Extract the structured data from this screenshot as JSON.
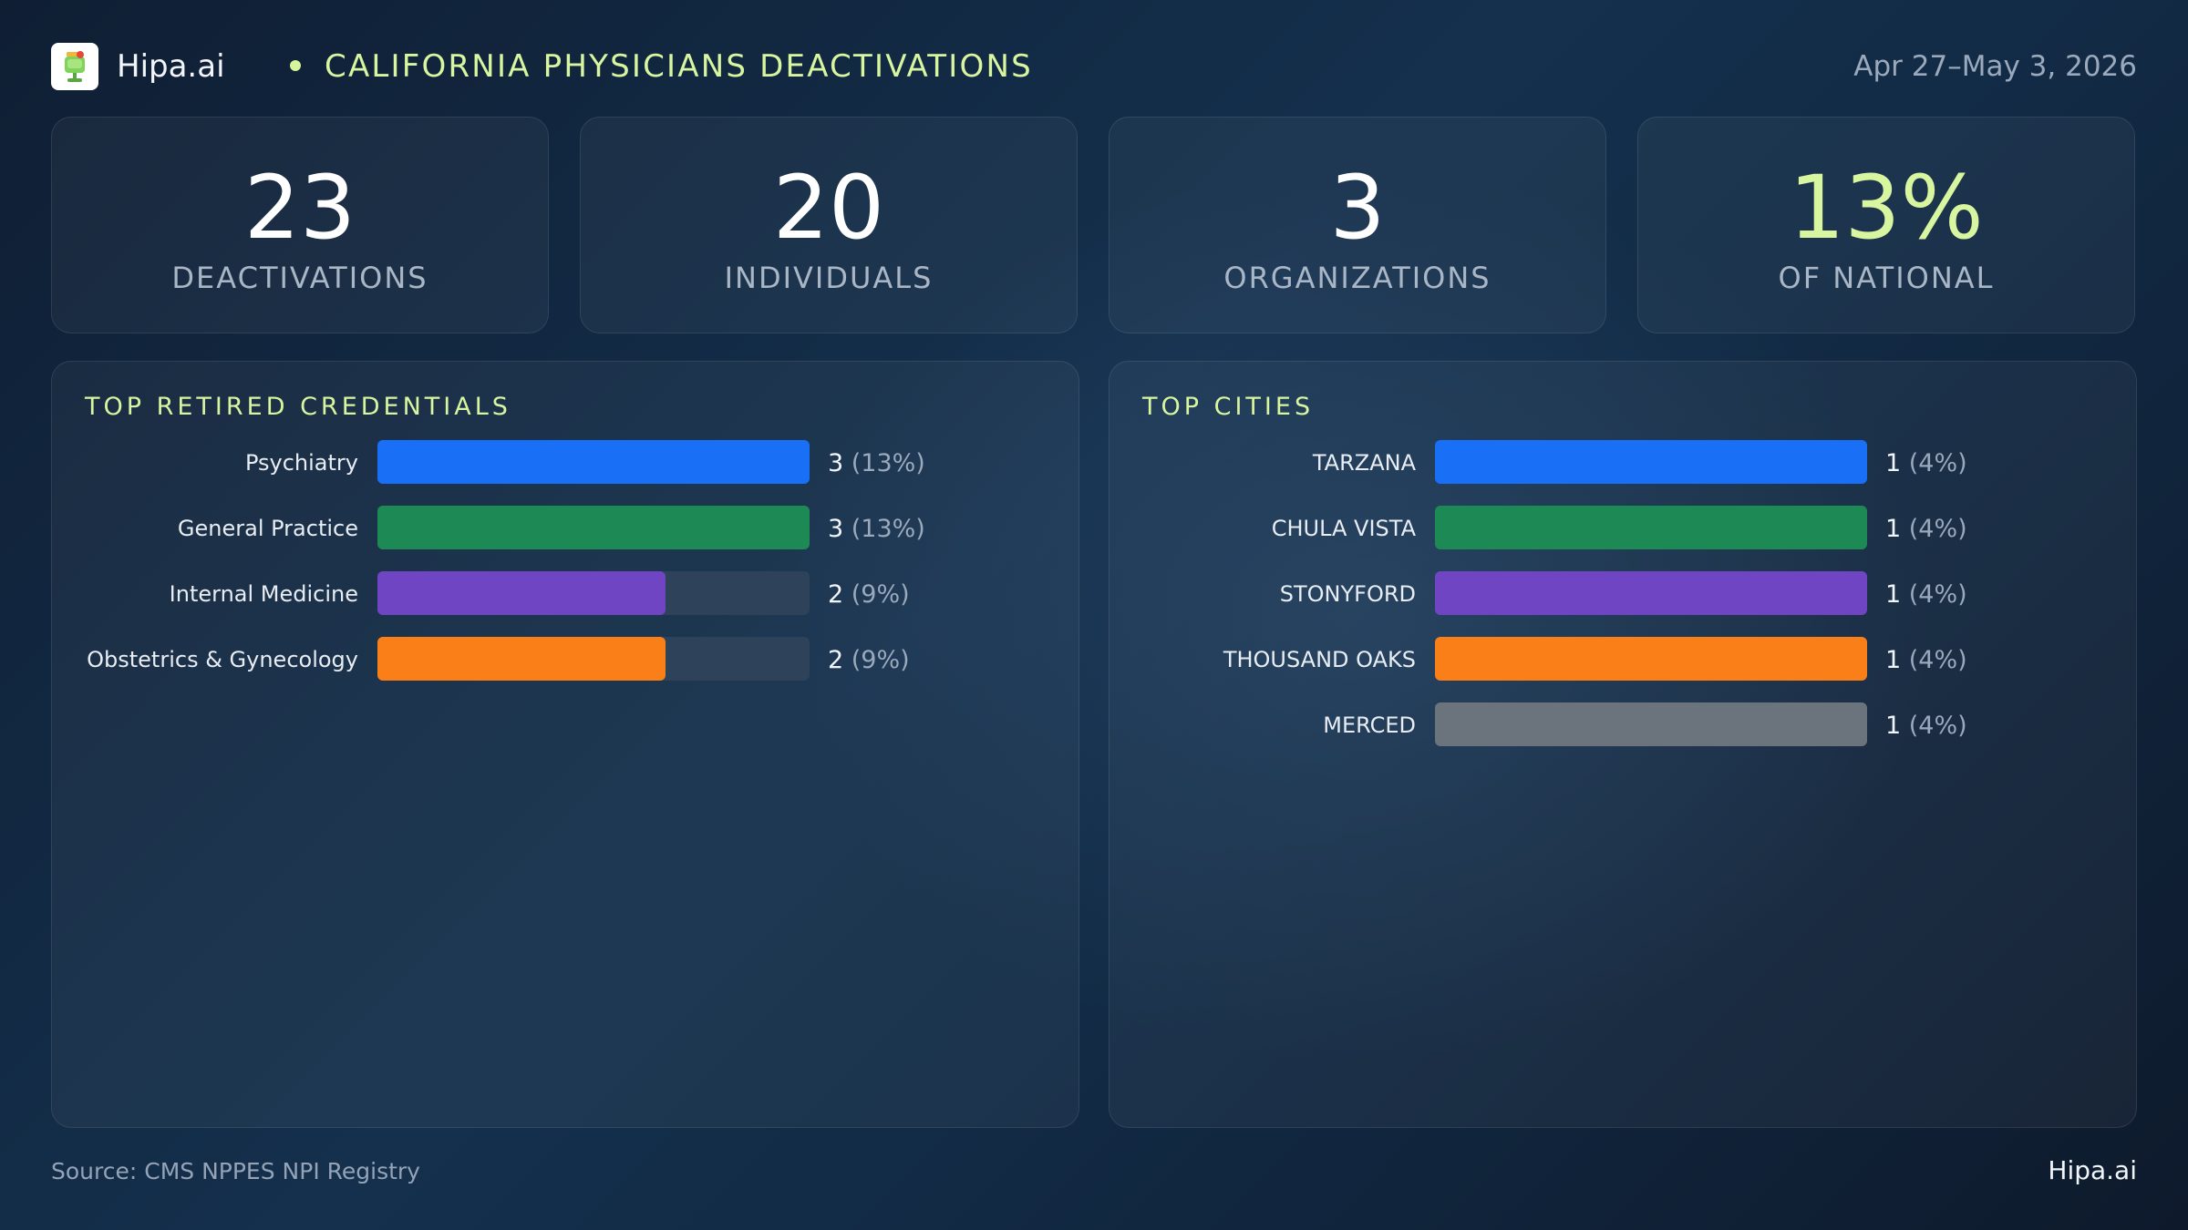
{
  "header": {
    "brand": "Hipa.ai",
    "title": "CALIFORNIA PHYSICIANS DEACTIVATIONS",
    "date_range": "Apr 27–May 3, 2026",
    "logo_icon": "cocktail-glass-icon"
  },
  "kpis": [
    {
      "value": "23",
      "label": "DEACTIVATIONS"
    },
    {
      "value": "20",
      "label": "INDIVIDUALS"
    },
    {
      "value": "3",
      "label": "ORGANIZATIONS"
    },
    {
      "value": "13%",
      "label": "OF NATIONAL",
      "accent_color": "#d8f5a0"
    }
  ],
  "chart_data": [
    {
      "type": "bar",
      "orientation": "horizontal",
      "title": "TOP RETIRED CREDENTIALS",
      "categories": [
        "Psychiatry",
        "General Practice",
        "Internal Medicine",
        "Obstetrics & Gynecology"
      ],
      "values": [
        3,
        3,
        2,
        2
      ],
      "percent_labels": [
        "(13%)",
        "(13%)",
        "(9%)",
        "(9%)"
      ],
      "colors": [
        "#1a6ff7",
        "#1d8a55",
        "#6f45c4",
        "#fb7f18"
      ],
      "xlim": [
        0,
        3
      ],
      "grid": false
    },
    {
      "type": "bar",
      "orientation": "horizontal",
      "title": "TOP CITIES",
      "categories": [
        "TARZANA",
        "CHULA VISTA",
        "STONYFORD",
        "THOUSAND OAKS",
        "MERCED"
      ],
      "values": [
        1,
        1,
        1,
        1,
        1
      ],
      "percent_labels": [
        "(4%)",
        "(4%)",
        "(4%)",
        "(4%)",
        "(4%)"
      ],
      "colors": [
        "#1a6ff7",
        "#1d8a55",
        "#6f45c4",
        "#fb7f18",
        "#6b737c"
      ],
      "xlim": [
        0,
        1
      ],
      "grid": false
    }
  ],
  "footer": {
    "source": "Source: CMS NPPES NPI Registry",
    "brand": "Hipa.ai"
  },
  "colors": {
    "accent": "#d8f5a0",
    "track": "#2e4259"
  }
}
